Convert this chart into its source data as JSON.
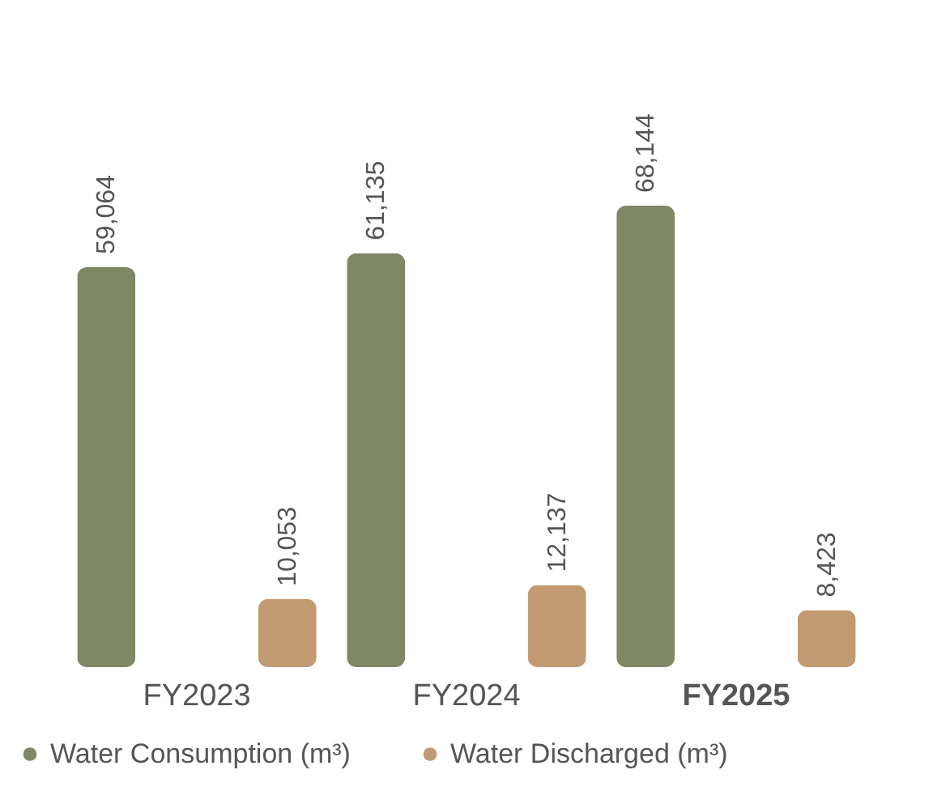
{
  "chart_data": {
    "type": "bar",
    "categories": [
      "FY2023",
      "FY2024",
      "FY2025"
    ],
    "series": [
      {
        "name": "Water Consumption (m³)",
        "color": "#7f8865",
        "values": [
          59064,
          61135,
          68144
        ],
        "value_labels": [
          "59,064",
          "61,135",
          "68,144"
        ]
      },
      {
        "name": "Water Discharged (m³)",
        "color": "#c29a72",
        "values": [
          10053,
          12137,
          8423
        ],
        "value_labels": [
          "10,053",
          "12,137",
          "8,423"
        ]
      }
    ],
    "legend": "bottom",
    "grid": false
  }
}
